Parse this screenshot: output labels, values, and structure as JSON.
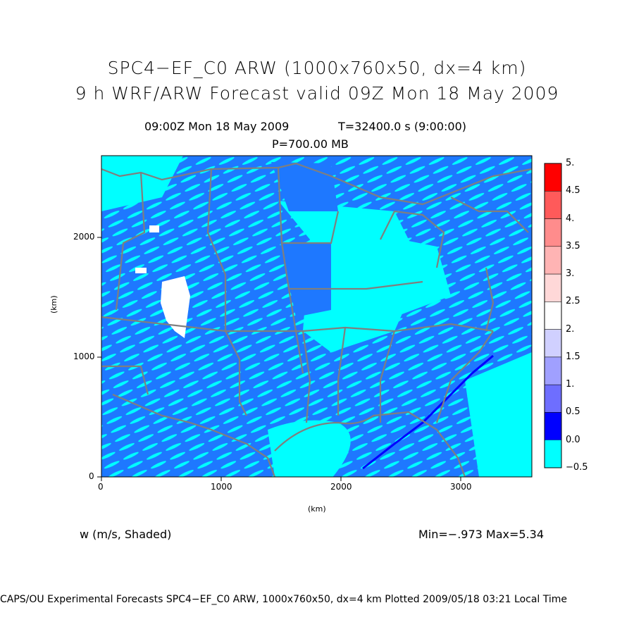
{
  "title_line1": "SPC4−EF_C0 ARW (1000x760x50, dx=4 km)",
  "title_line2": "9 h WRF/ARW Forecast valid 09Z Mon 18 May 2009",
  "time_label": "09:00Z Mon 18 May 2009",
  "time_seconds": "T=32400.0 s (9:00:00)",
  "level_label": "P=700.00 MB",
  "variable_label": "w (m/s, Shaded)",
  "min_max_label": "Min=−.973 Max=5.34",
  "footer": "CAPS/OU Experimental Forecasts  SPC4−EF_C0 ARW, 1000x760x50, dx=4 km  Plotted 2009/05/18 03:21 Local Time",
  "axes": {
    "x_unit": "(km)",
    "y_unit": "(km)",
    "x_ticks": [
      "0",
      "1000",
      "2000",
      "3000"
    ],
    "y_ticks": [
      "0",
      "1000",
      "2000"
    ]
  },
  "colorbar": {
    "labels": [
      "5.",
      "4.5",
      "4.",
      "3.5",
      "3.",
      "2.5",
      "2.",
      "1.5",
      "1.",
      "0.5",
      "0.0",
      "−0.5"
    ],
    "colors": [
      "#ff0000",
      "#ff5a5a",
      "#ff8c8c",
      "#ffb4b4",
      "#ffd8d8",
      "#ffffff",
      "#d0d0ff",
      "#a0a0ff",
      "#6e6eff",
      "#0000ff",
      "#1e78ff",
      "#00ffff"
    ]
  },
  "map_colors": {
    "background": "#00ffff",
    "field": "#1e78ff",
    "strong": "#0000ff",
    "boundaries": "#7f7f7f",
    "snow": "#ffffff"
  }
}
